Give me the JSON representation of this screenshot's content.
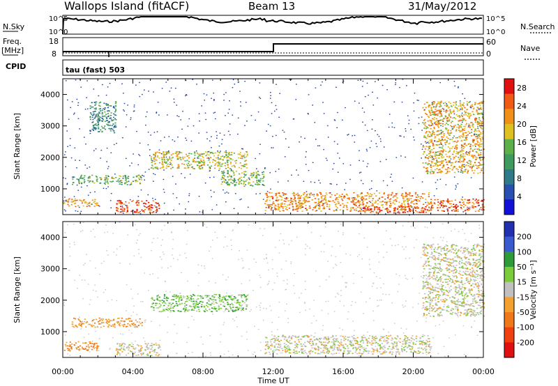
{
  "header": {
    "title": "Wallops Island (fitACF)",
    "beam": "Beam 13",
    "date": "31/May/2012"
  },
  "top_panels": {
    "nsky_label": "N.Sky",
    "nsky_ticks": [
      "10^5",
      "10^0"
    ],
    "nsearch_label": "N.Search",
    "nsearch_ticks": [
      "10^5",
      "10^0"
    ],
    "freq_label": "Freq.",
    "freq_unit": "[MHz]",
    "freq_ticks": [
      "18",
      "8"
    ],
    "nave_label": "Nave",
    "nave_ticks": [
      "60",
      "0"
    ],
    "cpid_label": "CPID",
    "cpid_value": "tau (fast) 503"
  },
  "colors": {
    "power_scale": [
      "#1010d8",
      "#2850b0",
      "#2e7a8a",
      "#3f9a60",
      "#5cb04a",
      "#e0c020",
      "#f09018",
      "#f05a14",
      "#e01010"
    ],
    "velocity_scale": [
      "#2030b0",
      "#3a5ad0",
      "#2e9a3a",
      "#7acc3a",
      "#c0c0c0",
      "#f2a030",
      "#f07818",
      "#f04010",
      "#e01010"
    ],
    "noise_power": "#1f3f9e",
    "noise_velocity": "#c8c8c8"
  },
  "chart_data": [
    {
      "type": "heatmap",
      "panel": "power",
      "ylabel": "Slant Range [km]",
      "xlabel": "",
      "ylim": [
        180,
        4500
      ],
      "xlim": [
        0,
        24
      ],
      "yticks": [
        "1000",
        "2000",
        "3000",
        "4000"
      ],
      "xticks": [
        "00:00",
        "04:00",
        "08:00",
        "12:00",
        "16:00",
        "20:00",
        "00:00"
      ],
      "colorbar": {
        "label": "Power [dB]",
        "ticks": [
          "4",
          "8",
          "12",
          "16",
          "20",
          "24",
          "28"
        ],
        "range": [
          0,
          30
        ]
      },
      "features": [
        {
          "t": [
            0.0,
            2.0
          ],
          "range": [
            450,
            700
          ],
          "power": 22
        },
        {
          "t": [
            0.5,
            4.5
          ],
          "range": [
            1150,
            1450
          ],
          "power": 14
        },
        {
          "t": [
            3.0,
            5.5
          ],
          "range": [
            250,
            650
          ],
          "power": 26
        },
        {
          "t": [
            5.0,
            10.5
          ],
          "range": [
            1650,
            2200
          ],
          "power": 18
        },
        {
          "t": [
            9.0,
            11.5
          ],
          "range": [
            1100,
            1600
          ],
          "power": 15
        },
        {
          "t": [
            11.5,
            21.0
          ],
          "range": [
            300,
            900
          ],
          "power": 22
        },
        {
          "t": [
            17.0,
            21.0
          ],
          "range": [
            250,
            450
          ],
          "power": 27
        },
        {
          "t": [
            20.5,
            24.0
          ],
          "range": [
            1500,
            3800
          ],
          "power": 20
        },
        {
          "t": [
            21.0,
            24.0
          ],
          "range": [
            300,
            700
          ],
          "power": 25
        },
        {
          "t": [
            1.5,
            3.0
          ],
          "range": [
            2800,
            3800
          ],
          "power": 10
        }
      ]
    },
    {
      "type": "heatmap",
      "panel": "velocity",
      "ylabel": "Slant Range [km]",
      "xlabel": "Time UT",
      "ylim": [
        180,
        4500
      ],
      "xlim": [
        0,
        24
      ],
      "yticks": [
        "1000",
        "2000",
        "3000",
        "4000"
      ],
      "xticks": [
        "00:00",
        "04:00",
        "08:00",
        "12:00",
        "16:00",
        "20:00",
        "00:00"
      ],
      "colorbar": {
        "label": "Velocity [m s⁻¹]",
        "ticks": [
          "200",
          "100",
          "50",
          "15",
          "-15",
          "-50",
          "-100",
          "-200"
        ],
        "range": [
          -250,
          250
        ]
      },
      "features": [
        {
          "t": [
            0.0,
            2.0
          ],
          "range": [
            400,
            700
          ],
          "velocity": -60
        },
        {
          "t": [
            0.5,
            4.5
          ],
          "range": [
            1150,
            1450
          ],
          "velocity": -40
        },
        {
          "t": [
            3.0,
            5.5
          ],
          "range": [
            250,
            650
          ],
          "velocity": -5
        },
        {
          "t": [
            5.0,
            10.5
          ],
          "range": [
            1650,
            2200
          ],
          "velocity": 40
        },
        {
          "t": [
            11.5,
            21.0
          ],
          "range": [
            300,
            900
          ],
          "velocity": 0
        },
        {
          "t": [
            20.5,
            24.0
          ],
          "range": [
            1500,
            3800
          ],
          "velocity": 0
        }
      ]
    }
  ]
}
